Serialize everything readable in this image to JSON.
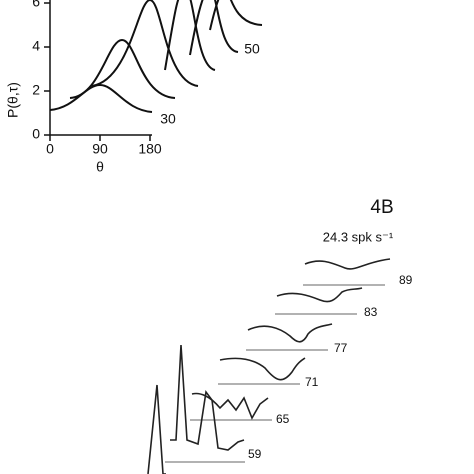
{
  "panel_top": {
    "yticks": [
      "6",
      "4",
      "2",
      "0"
    ],
    "ylabel": "P(θ,τ)",
    "xticks": [
      "0",
      "90",
      "180"
    ],
    "xlabel": "θ",
    "curve_labels": [
      "30",
      "50"
    ]
  },
  "panel_bottom": {
    "title": "4B",
    "subtitle": "24.3 spk s⁻¹",
    "trace_labels": [
      "89",
      "83",
      "77",
      "71",
      "65",
      "59"
    ]
  }
}
